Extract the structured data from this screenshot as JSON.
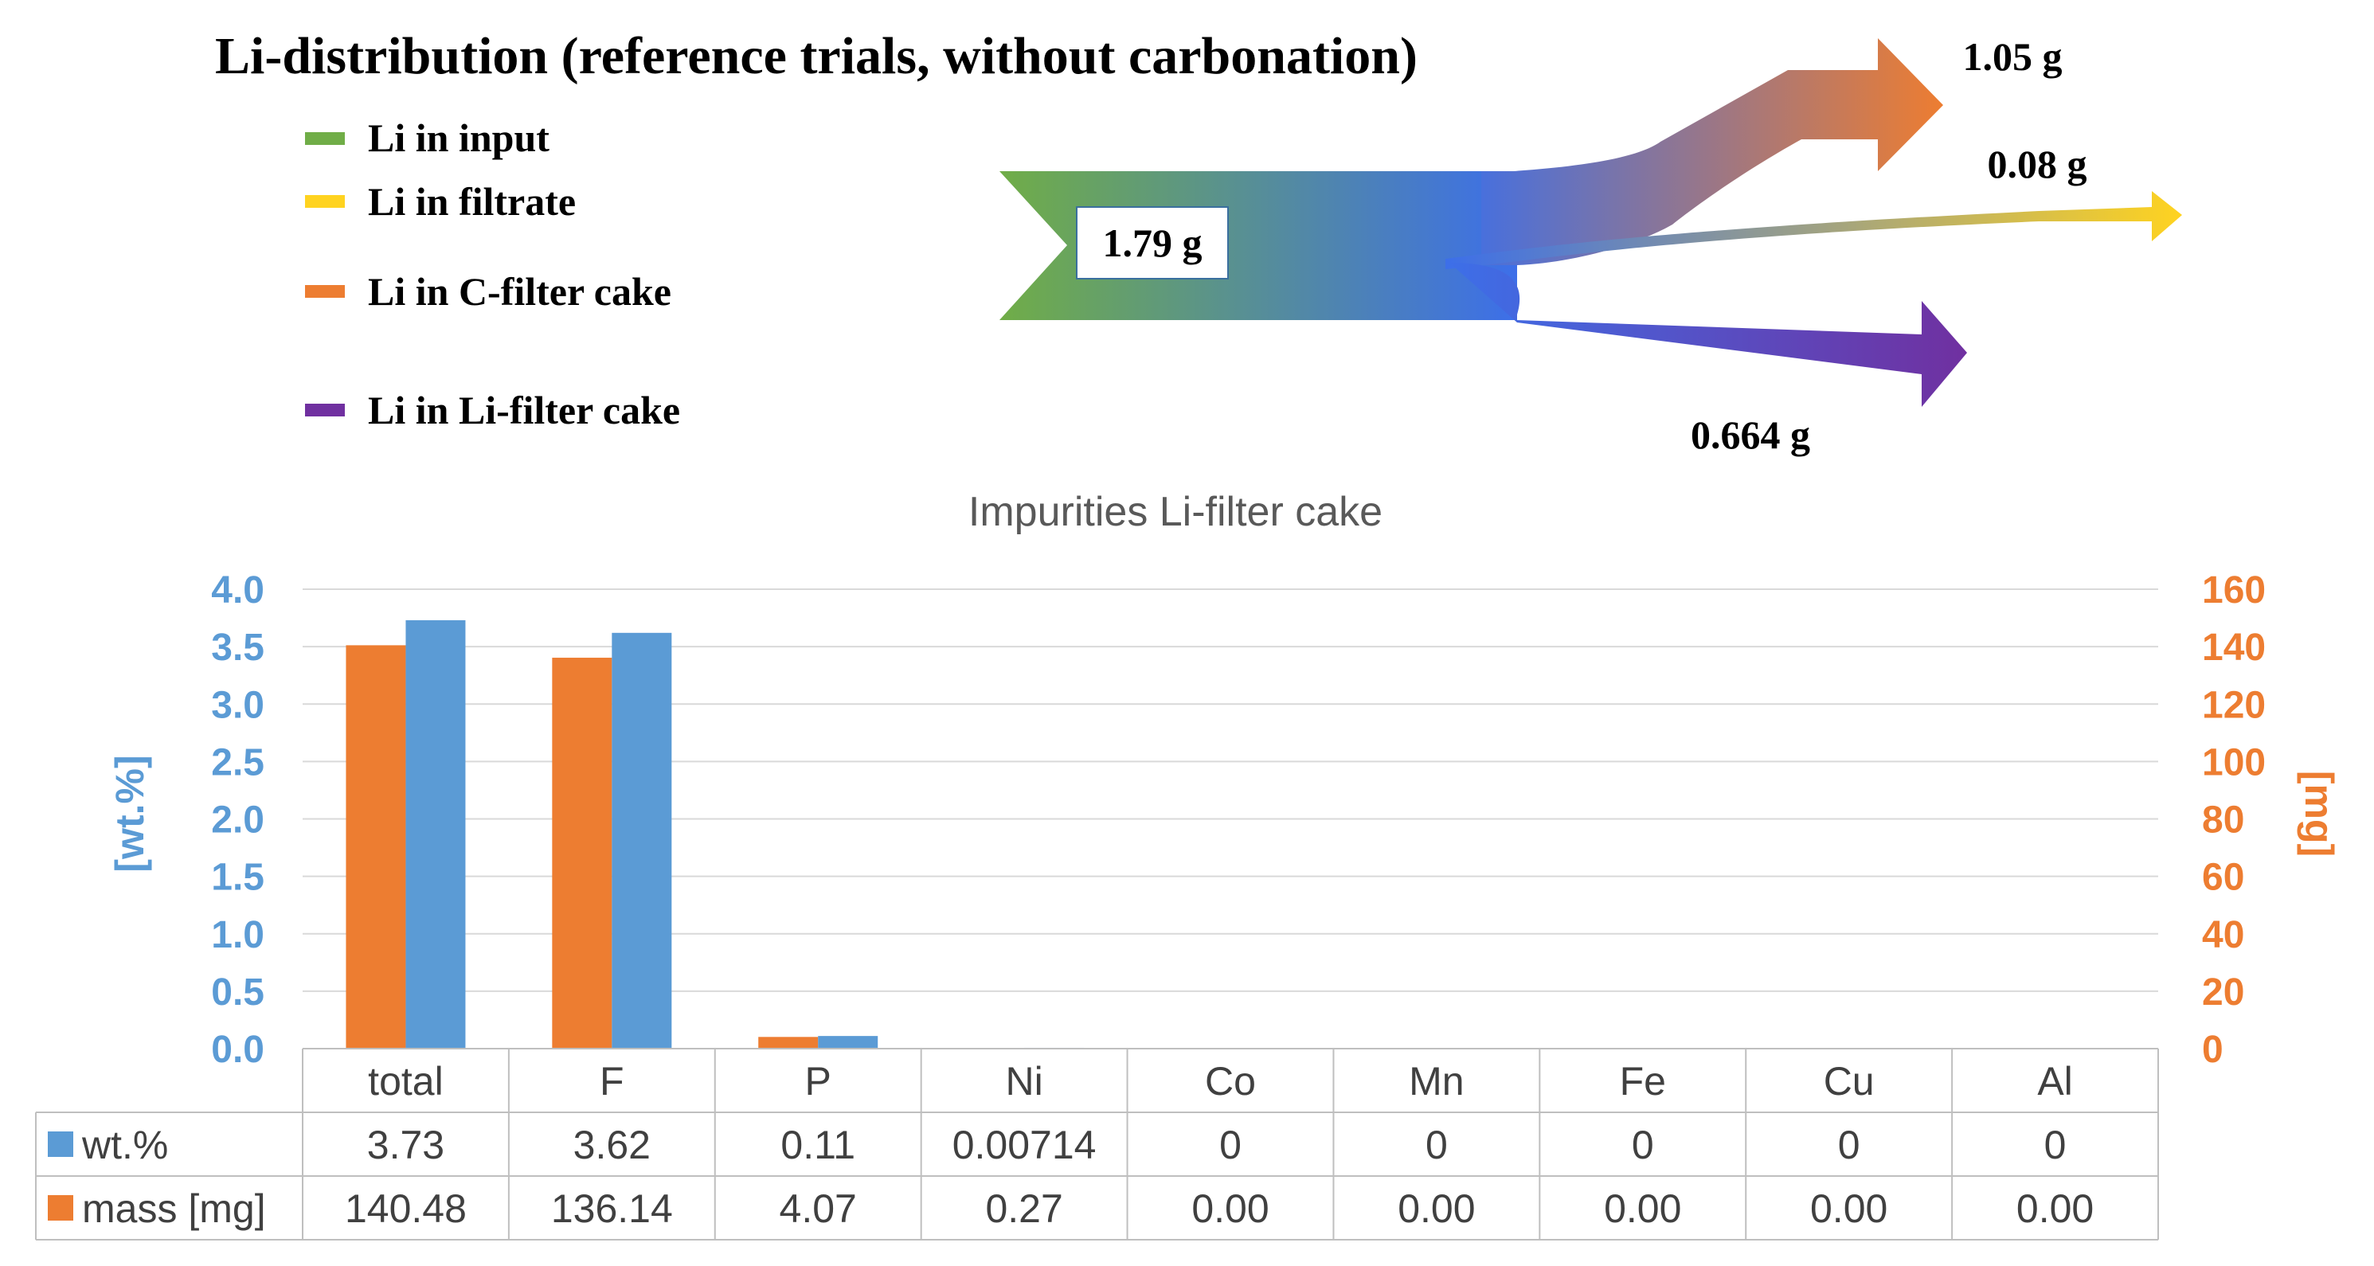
{
  "sankey": {
    "title": "Li-distribution (reference trials, without carbonation)",
    "legend": [
      {
        "label": "Li in input",
        "color": "#70ad47"
      },
      {
        "label": "Li in filtrate",
        "color": "#ffd320"
      },
      {
        "label": "Li in C-filter cake",
        "color": "#ed7d31"
      },
      {
        "label": "Li in Li-filter cake",
        "color": "#7030a0"
      }
    ],
    "flows": {
      "input": {
        "label": "1.79 g",
        "value": 1.79
      },
      "c_filter_cake": {
        "label": "1.05 g",
        "value": 1.05
      },
      "filtrate": {
        "label": "0.08 g",
        "value": 0.08
      },
      "li_filter_cake": {
        "label": "0.664 g",
        "value": 0.664
      }
    },
    "node_color": "#3d6fe8"
  },
  "chart_data": {
    "type": "bar",
    "title": "Impurities Li-filter cake",
    "categories": [
      "total",
      "F",
      "P",
      "Ni",
      "Co",
      "Mn",
      "Fe",
      "Cu",
      "Al"
    ],
    "series": [
      {
        "name": "wt.%",
        "axis": "left",
        "color": "#5b9bd5",
        "values": [
          3.73,
          3.62,
          0.11,
          0.00714,
          0,
          0,
          0,
          0,
          0
        ],
        "display": [
          "3.73",
          "3.62",
          "0.11",
          "0.00714",
          "0",
          "0",
          "0",
          "0",
          "0"
        ]
      },
      {
        "name": "mass [mg]",
        "axis": "right",
        "color": "#ed7d31",
        "values": [
          140.48,
          136.14,
          4.07,
          0.27,
          0,
          0,
          0,
          0,
          0
        ],
        "display": [
          "140.48",
          "136.14",
          "4.07",
          "0.27",
          "0.00",
          "0.00",
          "0.00",
          "0.00",
          "0.00"
        ]
      }
    ],
    "y_left": {
      "label": "[wt.%]",
      "min": 0,
      "max": 4.0,
      "step": 0.5,
      "decimals": 1,
      "color": "#5b9bd5"
    },
    "y_right": {
      "label": "[mg]",
      "min": 0,
      "max": 160,
      "step": 20,
      "decimals": 0,
      "color": "#ed7d31"
    },
    "grid": true,
    "data_table": true
  }
}
